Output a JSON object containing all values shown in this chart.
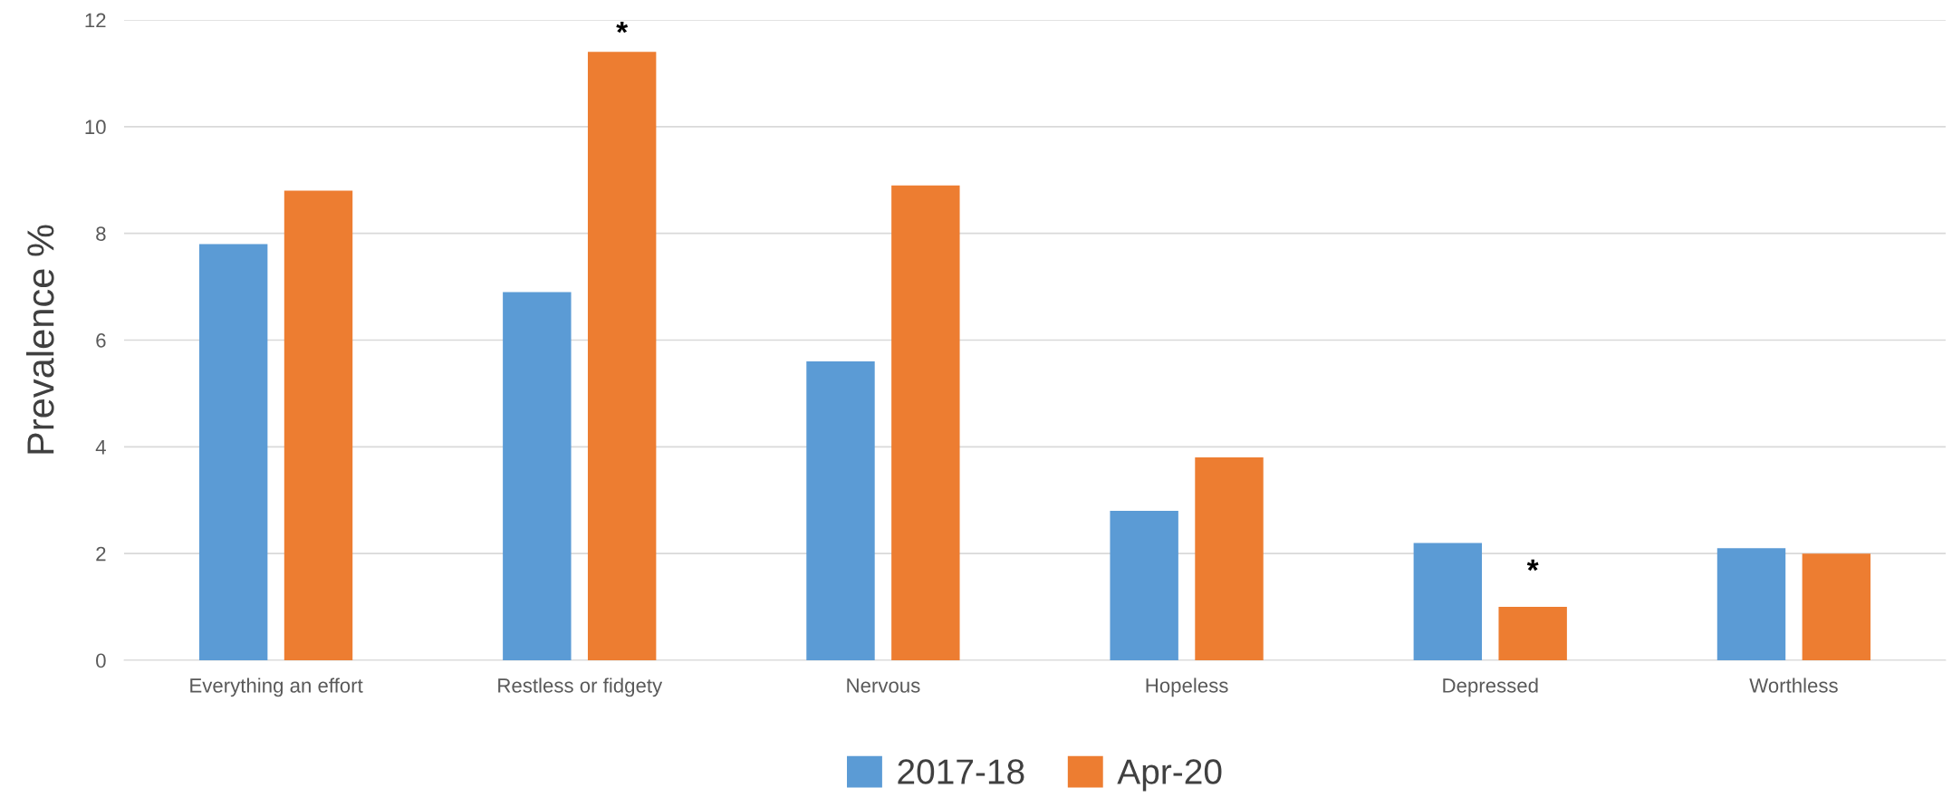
{
  "chart_data": {
    "type": "bar",
    "ylabel": "Prevalence %",
    "categories": [
      "Everything an effort",
      "Restless or fidgety",
      "Nervous",
      "Hopeless",
      "Depressed",
      "Worthless"
    ],
    "series": [
      {
        "name": "2017-18",
        "color": "#5b9bd5",
        "values": [
          7.8,
          6.9,
          5.6,
          2.8,
          2.2,
          2.1
        ]
      },
      {
        "name": "Apr-20",
        "color": "#ed7d31",
        "values": [
          8.8,
          11.4,
          8.9,
          3.8,
          1.0,
          2.0
        ]
      }
    ],
    "ylim": [
      0,
      12
    ],
    "yticks": [
      0,
      2,
      4,
      6,
      8,
      10,
      12
    ],
    "grid": "y",
    "legend": "bottom",
    "annotations": [
      "*",
      "*"
    ]
  }
}
